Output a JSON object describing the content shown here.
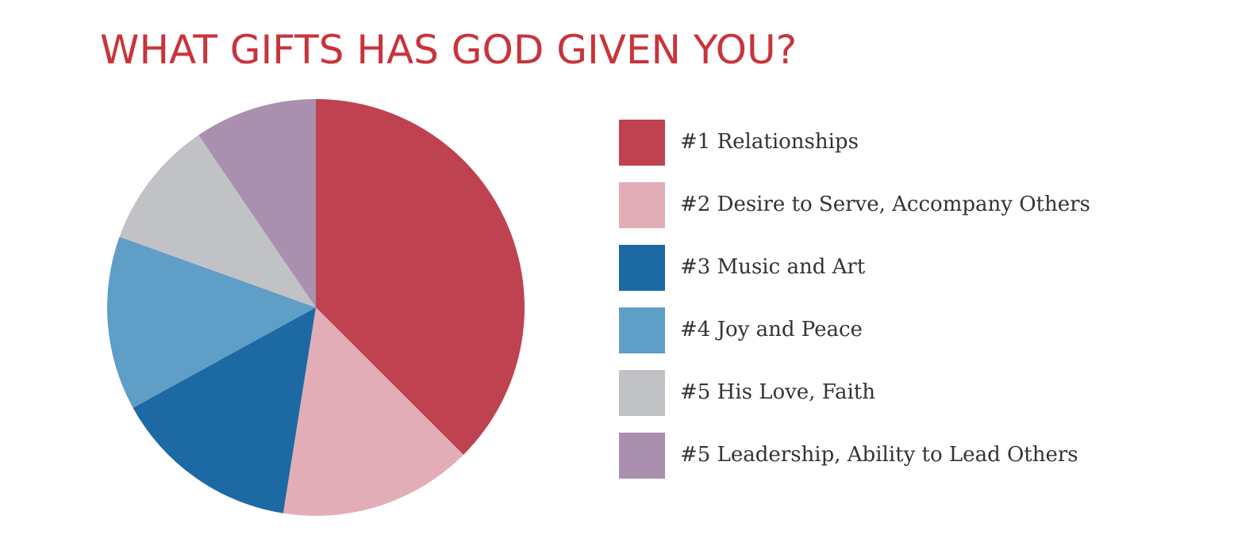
{
  "chart_data": {
    "type": "pie",
    "title": "WHAT GIFTS HAS GOD GIVEN YOU?",
    "categories": [
      "#1 Relationships",
      "#2 Desire to Serve, Accompany Others",
      "#3 Music and Art",
      "#4 Joy and Peace",
      "#5 His Love, Faith",
      "#5 Leadership, Ability to Lead Others"
    ],
    "values": [
      37.5,
      15,
      14.5,
      13.5,
      10,
      9.5
    ],
    "colors": [
      "#be4250",
      "#e3adb7",
      "#1c69a3",
      "#5f9ec7",
      "#c1c2c5",
      "#a990ae"
    ],
    "legend": "right"
  }
}
